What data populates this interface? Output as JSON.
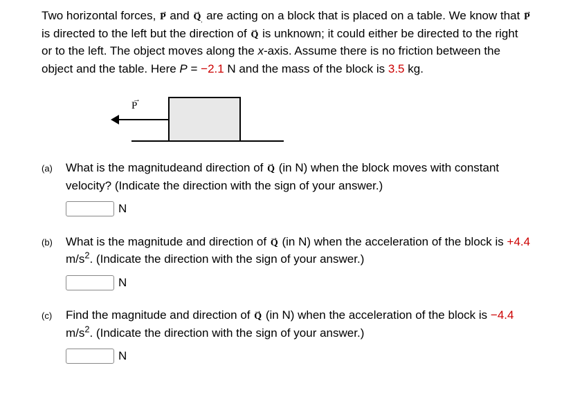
{
  "intro": {
    "text_1": "Two horizontal forces, ",
    "text_2": " and ",
    "text_3": " are acting on a block that is placed on a table. We know that ",
    "text_4": " is directed to the left but the direction of ",
    "text_5": " is unknown; it could either be directed to the right or to the left. The object moves along the ",
    "xaxis": "x",
    "text_6": "-axis. Assume there is no friction between the object and the table. Here ",
    "pvar": "P",
    "text_7": " = ",
    "pval": "−2.1",
    "text_8": " N and the mass of the block is ",
    "mass": "3.5",
    "text_9": " kg."
  },
  "diagram": {
    "label": "P"
  },
  "questions": {
    "a": {
      "label": "(a)",
      "text_1": "What is the magnitudeand direction of ",
      "text_2": " (in N) when the block moves with constant velocity? (Indicate the direction with the sign of your answer.)",
      "unit": "N"
    },
    "b": {
      "label": "(b)",
      "text_1": "What is the magnitude and direction of ",
      "text_2": " (in N) when the acceleration of the block is ",
      "accel": "+4.4",
      "text_3": " m/s",
      "exp": "2",
      "text_4": ". (Indicate the direction with the sign of your answer.)",
      "unit": "N"
    },
    "c": {
      "label": "(c)",
      "text_1": "Find the magnitude and direction of ",
      "text_2": " (in N) when the acceleration of the block is ",
      "accel": "−4.4",
      "text_3": " m/s",
      "exp": "2",
      "text_4": ". (Indicate the direction with the sign of your answer.)",
      "unit": "N"
    }
  }
}
